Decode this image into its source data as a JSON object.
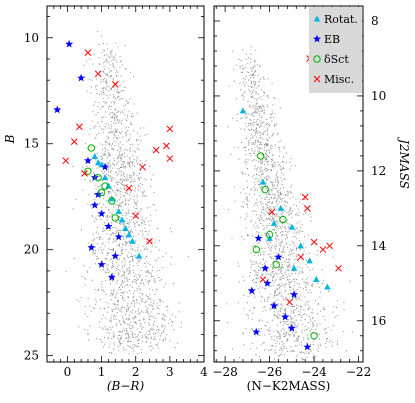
{
  "chart_data": [
    {
      "type": "scatter",
      "panel": "left",
      "xlabel": "(B−R)",
      "ylabel": "B",
      "xlim": [
        -0.6,
        4.0
      ],
      "ylim": [
        25.3,
        8.5
      ],
      "y_inverted": true,
      "xticks": [
        "0",
        "1",
        "2",
        "3",
        "4"
      ],
      "yticks": [
        "10",
        "15",
        "20",
        "25"
      ],
      "series": [
        {
          "name": "Rotat.",
          "marker": "triangle",
          "color": "#00b4e6",
          "points": [
            [
              0.8,
              15.6
            ],
            [
              1.0,
              16.0
            ],
            [
              1.2,
              17.0
            ],
            [
              1.5,
              18.2
            ],
            [
              1.8,
              19.3
            ],
            [
              2.1,
              20.3
            ],
            [
              0.9,
              15.9
            ],
            [
              1.3,
              17.6
            ],
            [
              1.6,
              18.6
            ],
            [
              1.9,
              19.6
            ],
            [
              1.1,
              16.6
            ],
            [
              1.7,
              19.0
            ]
          ]
        },
        {
          "name": "EB",
          "marker": "star",
          "color": "#0000ff",
          "points": [
            [
              0.05,
              10.3
            ],
            [
              0.4,
              11.9
            ],
            [
              -0.3,
              13.4
            ],
            [
              0.6,
              15.8
            ],
            [
              0.8,
              16.6
            ],
            [
              0.9,
              17.4
            ],
            [
              1.0,
              18.3
            ],
            [
              1.2,
              18.9
            ],
            [
              0.7,
              19.9
            ],
            [
              1.0,
              20.7
            ],
            [
              1.3,
              21.3
            ],
            [
              1.5,
              19.4
            ],
            [
              0.8,
              17.9
            ],
            [
              1.1,
              16.1
            ],
            [
              1.4,
              20.3
            ]
          ]
        },
        {
          "name": "δSct",
          "marker": "circle",
          "color": "#00b400",
          "points": [
            [
              0.7,
              15.2
            ],
            [
              0.9,
              16.6
            ],
            [
              1.0,
              17.3
            ],
            [
              1.3,
              17.7
            ],
            [
              0.6,
              16.3
            ],
            [
              1.4,
              18.5
            ],
            [
              1.1,
              17.0
            ]
          ]
        },
        {
          "name": "Misc.",
          "marker": "x",
          "color": "#ff0000",
          "points": [
            [
              0.6,
              10.7
            ],
            [
              0.9,
              11.7
            ],
            [
              0.35,
              14.2
            ],
            [
              0.2,
              14.9
            ],
            [
              -0.05,
              15.8
            ],
            [
              0.5,
              16.4
            ],
            [
              1.4,
              12.2
            ],
            [
              3.0,
              14.3
            ],
            [
              2.9,
              15.1
            ],
            [
              2.6,
              15.3
            ],
            [
              2.2,
              16.1
            ],
            [
              1.8,
              17.1
            ],
            [
              2.4,
              19.6
            ],
            [
              2.0,
              18.4
            ],
            [
              3.0,
              15.7
            ]
          ]
        }
      ]
    },
    {
      "type": "scatter",
      "panel": "right",
      "xlabel": "(N−K2MASS)",
      "ylabel": "J2MASS",
      "xlim": [
        -28.5,
        -21.8
      ],
      "ylim": [
        17.1,
        7.6
      ],
      "y_inverted": true,
      "y_axis_side": "right",
      "xticks": [
        "−28",
        "−26",
        "−24",
        "−22"
      ],
      "yticks": [
        "8",
        "10",
        "12",
        "14",
        "16"
      ],
      "legend": {
        "position": "top-right",
        "entries": [
          "Rotat.",
          "EB",
          "δSct",
          "Misc."
        ]
      },
      "series": [
        {
          "name": "Rotat.",
          "marker": "triangle",
          "color": "#00b4e6",
          "points": [
            [
              -27.2,
              10.4
            ],
            [
              -26.3,
              12.3
            ],
            [
              -25.5,
              13.0
            ],
            [
              -25.0,
              13.5
            ],
            [
              -24.6,
              14.0
            ],
            [
              -24.2,
              14.4
            ],
            [
              -23.9,
              14.9
            ],
            [
              -23.4,
              15.1
            ],
            [
              -25.8,
              13.4
            ],
            [
              -26.0,
              13.8
            ],
            [
              -24.9,
              14.6
            ]
          ]
        },
        {
          "name": "EB",
          "marker": "star",
          "color": "#0000ff",
          "points": [
            [
              -26.5,
              13.8
            ],
            [
              -26.2,
              14.6
            ],
            [
              -26.8,
              15.2
            ],
            [
              -25.8,
              15.6
            ],
            [
              -25.3,
              15.9
            ],
            [
              -24.3,
              16.7
            ],
            [
              -26.6,
              16.3
            ],
            [
              -25.6,
              14.3
            ],
            [
              -24.9,
              15.3
            ],
            [
              -26.1,
              15.0
            ],
            [
              -25.0,
              16.2
            ]
          ]
        },
        {
          "name": "δSct",
          "marker": "circle",
          "color": "#00b400",
          "points": [
            [
              -26.4,
              11.6
            ],
            [
              -26.2,
              12.5
            ],
            [
              -26.0,
              13.7
            ],
            [
              -25.7,
              14.5
            ],
            [
              -26.6,
              14.1
            ],
            [
              -25.4,
              13.3
            ],
            [
              -24.0,
              16.4
            ]
          ]
        },
        {
          "name": "Misc.",
          "marker": "x",
          "color": "#ff0000",
          "points": [
            [
              -24.2,
              9.0
            ],
            [
              -24.3,
              13.0
            ],
            [
              -24.0,
              13.9
            ],
            [
              -23.6,
              14.1
            ],
            [
              -23.3,
              14.0
            ],
            [
              -22.9,
              14.6
            ],
            [
              -24.6,
              14.3
            ],
            [
              -25.9,
              13.1
            ],
            [
              -24.4,
              12.7
            ],
            [
              -25.1,
              15.5
            ],
            [
              -26.3,
              14.9
            ]
          ]
        }
      ]
    }
  ]
}
